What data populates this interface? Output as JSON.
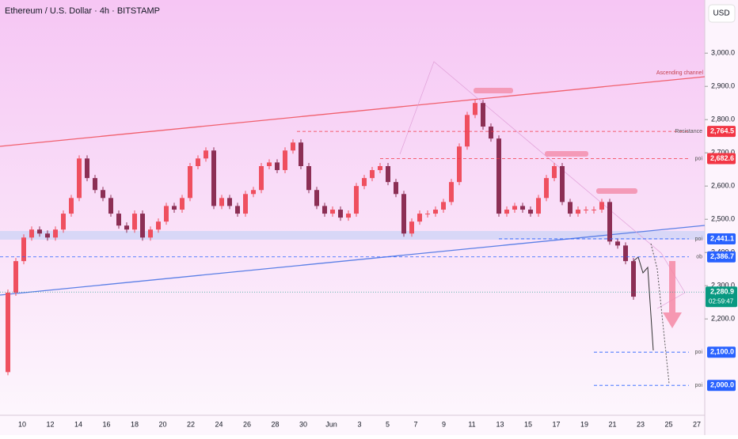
{
  "header": {
    "title": "Ethereum / U.S. Dollar · 4h · BITSTAMP",
    "currency": "USD"
  },
  "chart_data": {
    "type": "candlestick",
    "up_color": "#ef4f5f",
    "down_color": "#8c2f55",
    "closes": [
      2040,
      2279,
      2374,
      2445,
      2469,
      2457,
      2445,
      2469,
      2517,
      2564,
      2683,
      2624,
      2588,
      2564,
      2517,
      2481,
      2469,
      2517,
      2445,
      2469,
      2493,
      2540,
      2529,
      2564,
      2660,
      2683,
      2707,
      2540,
      2564,
      2540,
      2517,
      2576,
      2588,
      2660,
      2671,
      2648,
      2707,
      2731,
      2660,
      2588,
      2540,
      2517,
      2529,
      2505,
      2517,
      2600,
      2624,
      2648,
      2660,
      2612,
      2576,
      2457,
      2493,
      2517,
      2517,
      2529,
      2552,
      2612,
      2719,
      2814,
      2850,
      2779,
      2743,
      2517,
      2529,
      2540,
      2529,
      2517,
      2564,
      2624,
      2660,
      2552,
      2517,
      2529,
      2529,
      2529,
      2552,
      2433,
      2421,
      2374,
      2267
    ],
    "ylim": [
      1910,
      3160
    ],
    "yticks": [
      {
        "value": 2200,
        "label": "2,200.0"
      },
      {
        "value": 2300,
        "label": "2,300.0"
      },
      {
        "value": 2400,
        "label": "2,400.0"
      },
      {
        "value": 2500,
        "label": "2,500.0"
      },
      {
        "value": 2600,
        "label": "2,600.0"
      },
      {
        "value": 2700,
        "label": "2,700.0"
      },
      {
        "value": 2800,
        "label": "2,800.0"
      },
      {
        "value": 2900,
        "label": "2,900.0"
      },
      {
        "value": 3000,
        "label": "3,000.0"
      }
    ],
    "xticks": [
      "10",
      "12",
      "14",
      "16",
      "18",
      "20",
      "22",
      "24",
      "26",
      "28",
      "30",
      "Jun",
      "3",
      "5",
      "7",
      "9",
      "11",
      "13",
      "15",
      "17",
      "19",
      "21",
      "23",
      "25",
      "27"
    ],
    "levels": [
      {
        "name": "Resistance",
        "value": 2764.5,
        "label": "2,764.5",
        "color": "#f23645"
      },
      {
        "name": "poi",
        "value": 2682.6,
        "label": "2,682.6",
        "color": "#f23645"
      },
      {
        "name": "poi",
        "value": 2441.1,
        "label": "2,441.1",
        "color": "#2962ff"
      },
      {
        "name": "ob",
        "value": 2386.7,
        "label": "2,386.7",
        "color": "#2962ff"
      },
      {
        "name": "poi",
        "value": 2100,
        "label": "2,100.0",
        "color": "#2962ff"
      },
      {
        "name": "poi",
        "value": 2000,
        "label": "2,000.0",
        "color": "#2962ff"
      }
    ],
    "last_price": {
      "value": 2280.9,
      "label": "2,280.9",
      "countdown": "02:59:47",
      "color": "#089981"
    },
    "annotation": "Ascending channel"
  }
}
